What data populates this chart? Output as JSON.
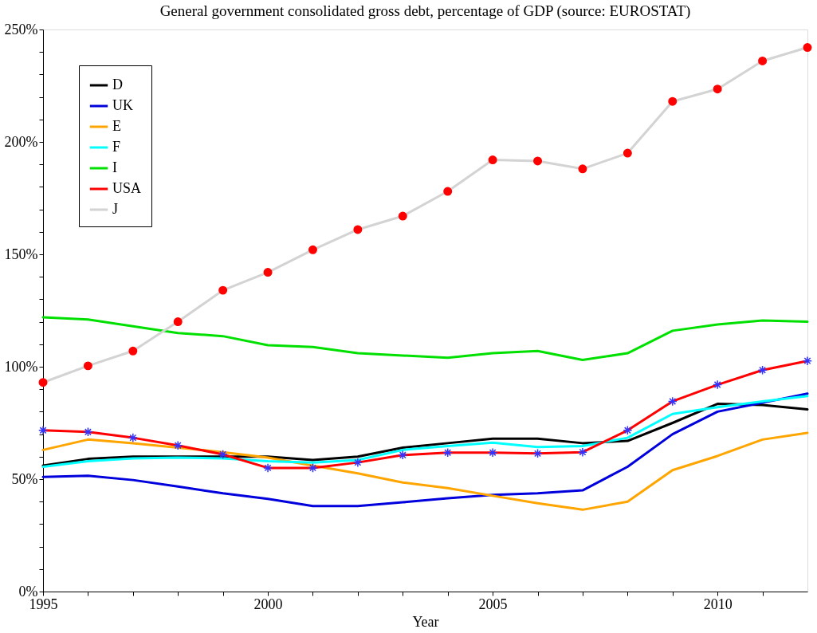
{
  "chart_data": {
    "type": "line",
    "title": "General government consolidated gross debt, percentage of GDP (source: EUROSTAT)",
    "xlabel": "Year",
    "x": [
      1995,
      1996,
      1997,
      1998,
      1999,
      2000,
      2001,
      2002,
      2003,
      2004,
      2005,
      2006,
      2007,
      2008,
      2009,
      2010,
      2011,
      2012
    ],
    "series": [
      {
        "name": "D",
        "color": "#000000",
        "values": [
          56,
          59,
          60,
          60,
          60,
          60,
          58.5,
          60,
          64,
          66,
          68,
          68,
          66,
          67,
          75,
          83.5,
          83,
          81
        ]
      },
      {
        "name": "UK",
        "color": "#0000dd",
        "values": [
          51,
          51.5,
          49.6,
          46.7,
          43.7,
          41.2,
          38,
          38,
          39.7,
          41.5,
          43,
          43.7,
          45,
          55.5,
          70,
          80,
          84,
          88
        ]
      },
      {
        "name": "E",
        "color": "#ffa500",
        "values": [
          63,
          67.6,
          66,
          64,
          62,
          59.6,
          56,
          52.6,
          48.5,
          46,
          42.6,
          39.3,
          36.4,
          40,
          54,
          60.3,
          67.6,
          70.6
        ]
      },
      {
        "name": "F",
        "color": "#00ffff",
        "values": [
          55.5,
          58,
          59.2,
          59.6,
          59.2,
          58,
          57.4,
          58.5,
          63,
          64.7,
          66.2,
          64.3,
          64.7,
          68.4,
          79,
          82,
          84.6,
          87
        ]
      },
      {
        "name": "I",
        "color": "#00e000",
        "values": [
          122,
          121,
          118,
          115,
          113.6,
          109.6,
          108.8,
          106,
          105,
          104,
          106,
          107,
          103,
          106,
          116,
          118.8,
          120.6,
          120
        ]
      },
      {
        "name": "USA",
        "color": "#ff0000",
        "values": [
          71.7,
          71,
          68.4,
          65,
          61,
          55,
          55,
          57.4,
          60.7,
          61.8,
          61.8,
          61.4,
          62,
          71.7,
          84.6,
          92,
          98.5,
          102.6
        ]
      },
      {
        "type": "scatter",
        "marker": "cross",
        "color": "#3333ff",
        "values": [
          71.7,
          71,
          68.4,
          65,
          61,
          55,
          55,
          57.4,
          60.7,
          61.8,
          61.8,
          61.4,
          62,
          71.7,
          84.6,
          92,
          98.5,
          102.6
        ]
      },
      {
        "name": "J",
        "color": "#d3d3d3",
        "values": [
          93,
          100.4,
          107,
          120,
          134,
          142,
          152,
          161,
          167,
          178,
          192,
          191.5,
          188,
          195,
          218,
          223.5,
          236,
          242
        ]
      },
      {
        "type": "scatter",
        "marker": "circle",
        "color": "#ff0000",
        "values": [
          93,
          100.4,
          107,
          120,
          134,
          142,
          152,
          161,
          167,
          178,
          192,
          191.5,
          188,
          195,
          218,
          223.5,
          236,
          242
        ]
      }
    ],
    "xlim": [
      1995,
      2012
    ],
    "xticks": [
      1995,
      {
        "value": 1996,
        "label": null
      },
      {
        "value": 1997,
        "label": null
      },
      {
        "value": 1998,
        "label": null
      },
      {
        "value": 1999,
        "label": null
      },
      2000,
      {
        "value": 2001,
        "label": null
      },
      {
        "value": 2002,
        "label": null
      },
      {
        "value": 2003,
        "label": null
      },
      {
        "value": 2004,
        "label": null
      },
      2005,
      {
        "value": 2006,
        "label": null
      },
      {
        "value": 2007,
        "label": null
      },
      {
        "value": 2008,
        "label": null
      },
      {
        "value": 2009,
        "label": null
      },
      2010,
      {
        "value": 2011,
        "label": null
      }
    ],
    "ylim": [
      0,
      250
    ],
    "yticks": [
      {
        "value": 0,
        "label": "0%"
      },
      {
        "value": 10,
        "label": null
      },
      {
        "value": 20,
        "label": null
      },
      {
        "value": 30,
        "label": null
      },
      {
        "value": 40,
        "label": null
      },
      {
        "value": 50,
        "label": "50%"
      },
      {
        "value": 60,
        "label": null
      },
      {
        "value": 70,
        "label": null
      },
      {
        "value": 80,
        "label": null
      },
      {
        "value": 90,
        "label": null
      },
      {
        "value": 100,
        "label": "100%"
      },
      {
        "value": 110,
        "label": null
      },
      {
        "value": 120,
        "label": null
      },
      {
        "value": 130,
        "label": null
      },
      {
        "value": 140,
        "label": null
      },
      {
        "value": 150,
        "label": "150%"
      },
      {
        "value": 160,
        "label": null
      },
      {
        "value": 170,
        "label": null
      },
      {
        "value": 180,
        "label": null
      },
      {
        "value": 190,
        "label": null
      },
      {
        "value": 200,
        "label": "200%"
      },
      {
        "value": 210,
        "label": null
      },
      {
        "value": 220,
        "label": null
      },
      {
        "value": 230,
        "label": null
      },
      {
        "value": 240,
        "label": null
      },
      {
        "value": 250,
        "label": "250%"
      }
    ],
    "grid": false,
    "legend": "top left",
    "line_style": "solid"
  }
}
